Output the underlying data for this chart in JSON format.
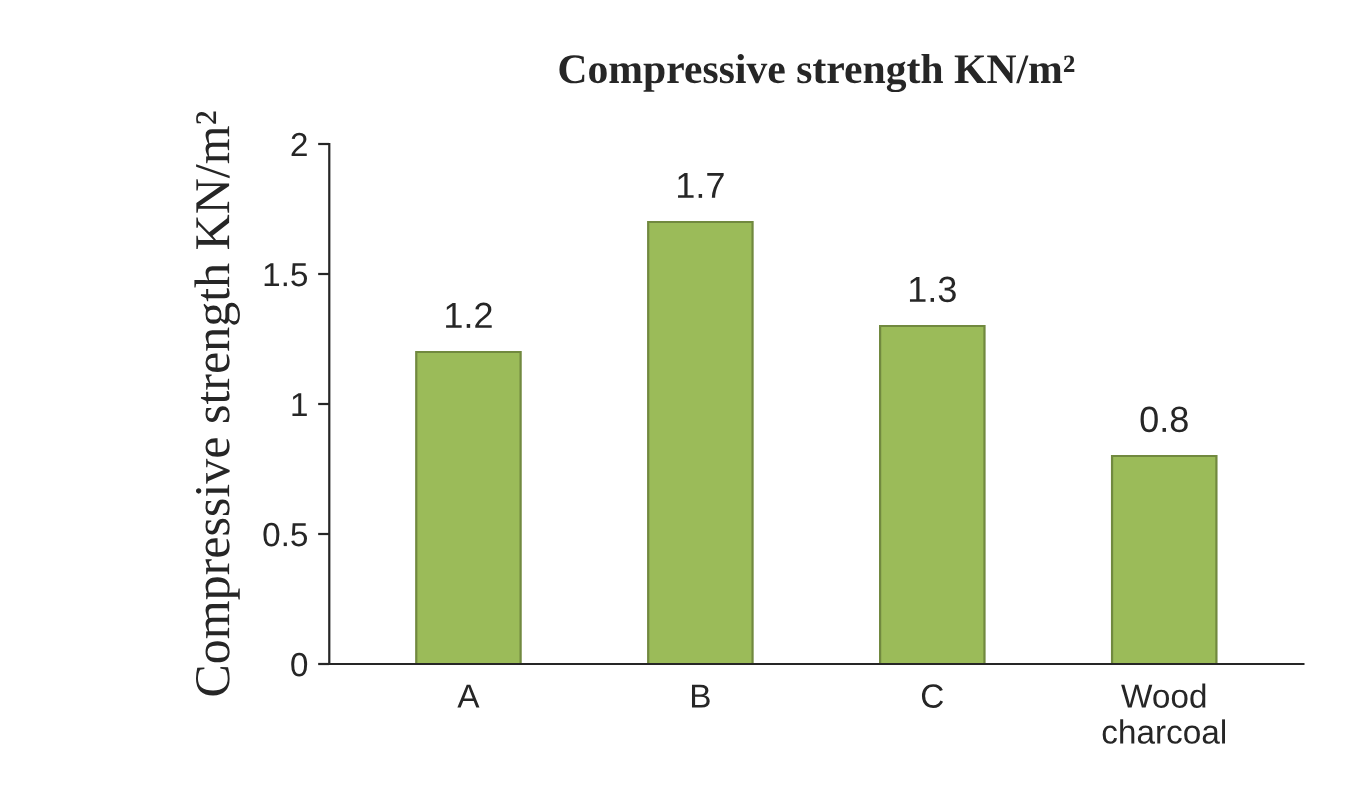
{
  "chart_data": {
    "type": "bar",
    "title": "Compressive strength KN/m²",
    "ylabel": "Compressive strength KN/m²",
    "categories": [
      "A",
      "B",
      "C",
      "Wood\ncharcoal"
    ],
    "values": [
      1.2,
      1.7,
      1.3,
      0.8
    ],
    "color": "#9bbb59",
    "ylim": [
      0,
      2
    ],
    "yticks": [
      0,
      0.5,
      1,
      1.5,
      2
    ],
    "data_labels": true,
    "grid": false,
    "legend": false
  }
}
